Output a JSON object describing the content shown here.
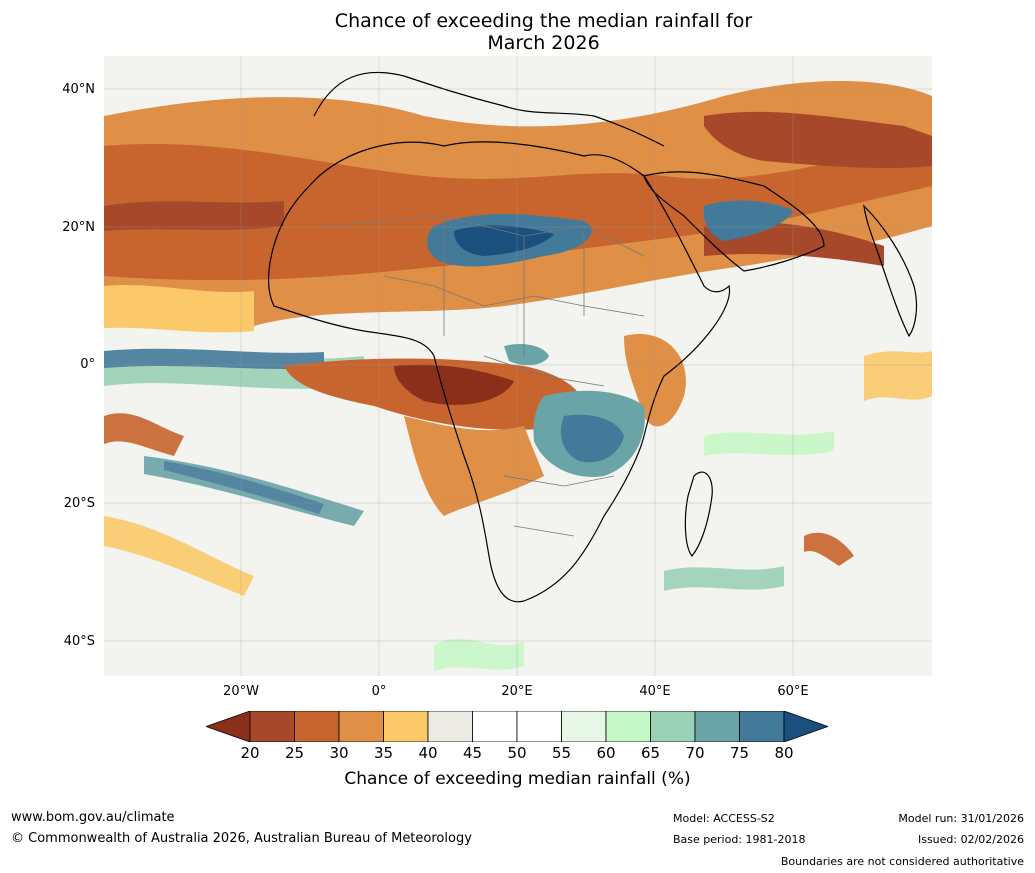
{
  "title": {
    "line1": "Chance of exceeding the median rainfall for",
    "line2": "March 2026"
  },
  "axes": {
    "lat_labels": [
      "40°N",
      "20°N",
      "0°",
      "20°S",
      "40°S"
    ],
    "lon_labels": [
      "20°W",
      "0°",
      "20°E",
      "40°E",
      "60°E"
    ]
  },
  "colorbar": {
    "ticks": [
      "20",
      "25",
      "30",
      "35",
      "40",
      "45",
      "50",
      "55",
      "60",
      "65",
      "70",
      "75",
      "80"
    ],
    "colors": [
      "#8b2e1a",
      "#a8482a",
      "#c8652f",
      "#e08f46",
      "#fbc96a",
      "#ecebe6",
      "#ffffff",
      "#ffffff",
      "#e6f7e6",
      "#c6f7c6",
      "#9bd1b6",
      "#6aa4a6",
      "#437a99",
      "#19507d"
    ],
    "label": "Chance of exceeding median rainfall (%)"
  },
  "footer": {
    "website": "www.bom.gov.au/climate",
    "copyright": "© Commonwealth of Australia 2026, Australian Bureau of Meteorology",
    "model": "Model: ACCESS-S2",
    "base_period": "Base period: 1981-2018",
    "model_run": "Model run: 31/01/2026",
    "issued": "Issued: 02/02/2026",
    "disclaimer": "Boundaries are not considered authoritative"
  }
}
